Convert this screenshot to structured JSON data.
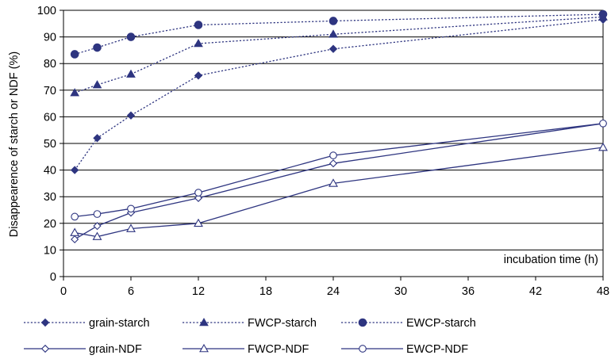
{
  "chart_data": {
    "type": "line",
    "title": "",
    "xlabel": "incubation time (h)",
    "ylabel": "Disappearence of starch or NDF  (%)",
    "xlim": [
      0,
      48
    ],
    "ylim": [
      0,
      100
    ],
    "xticks": [
      0,
      6,
      12,
      18,
      24,
      30,
      36,
      42,
      48
    ],
    "yticks": [
      0,
      10,
      20,
      30,
      40,
      50,
      60,
      70,
      80,
      90,
      100
    ],
    "grid": "horizontal",
    "legend_position": "bottom",
    "series": [
      {
        "name": "grain-starch",
        "line": "dotted",
        "marker": "diamond-filled",
        "color": "#2e3580",
        "x": [
          1,
          3,
          6,
          12,
          24,
          48
        ],
        "y": [
          40,
          52,
          60.5,
          75.5,
          85.5,
          96.5
        ]
      },
      {
        "name": "FWCP-starch",
        "line": "dotted",
        "marker": "triangle-filled",
        "color": "#2e3580",
        "x": [
          1,
          3,
          6,
          12,
          24,
          48
        ],
        "y": [
          69,
          72,
          76,
          87.5,
          91,
          97.5
        ]
      },
      {
        "name": "EWCP-starch",
        "line": "dotted",
        "marker": "circle-filled",
        "color": "#2e3580",
        "x": [
          1,
          3,
          6,
          12,
          24,
          48
        ],
        "y": [
          83.5,
          86,
          90,
          94.5,
          96,
          98.5
        ]
      },
      {
        "name": "grain-NDF",
        "line": "solid",
        "marker": "diamond-open",
        "color": "#2e3580",
        "x": [
          1,
          3,
          6,
          12,
          24,
          48
        ],
        "y": [
          14,
          19,
          24,
          29.5,
          42.5,
          57.5
        ]
      },
      {
        "name": "FWCP-NDF",
        "line": "solid",
        "marker": "triangle-open",
        "color": "#2e3580",
        "x": [
          1,
          3,
          6,
          12,
          24,
          48
        ],
        "y": [
          16.5,
          15,
          18,
          20,
          35,
          48.5
        ]
      },
      {
        "name": "EWCP-NDF",
        "line": "solid",
        "marker": "circle-open",
        "color": "#2e3580",
        "x": [
          1,
          3,
          6,
          12,
          24,
          48
        ],
        "y": [
          22.5,
          23.5,
          25.5,
          31.5,
          45.5,
          57.5
        ]
      }
    ]
  }
}
